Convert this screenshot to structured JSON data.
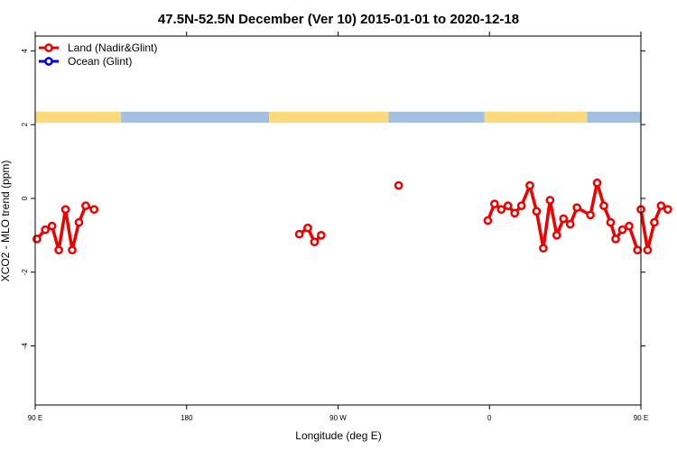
{
  "chart_data": {
    "type": "line",
    "title": "47.5N-52.5N December (Ver 10)   2015-01-01 to 2020-12-18",
    "xlabel": "Longitude (deg E)",
    "ylabel": "XCO2 - MLO trend (ppm)",
    "xlim": [
      90,
      450
    ],
    "ylim": [
      -5.6,
      4.4
    ],
    "x_ticks": [
      {
        "value": 90,
        "label": "90 E"
      },
      {
        "value": 180,
        "label": "180"
      },
      {
        "value": 270,
        "label": "90 W"
      },
      {
        "value": 360,
        "label": "0"
      },
      {
        "value": 450,
        "label": "90 E"
      }
    ],
    "x_ticks_top": [
      90,
      180,
      270,
      360,
      450
    ],
    "y_ticks": [
      {
        "value": 4,
        "label": "4"
      },
      {
        "value": 2,
        "label": "2"
      },
      {
        "value": 0,
        "label": "0"
      },
      {
        "value": -2,
        "label": "-2"
      },
      {
        "value": -4,
        "label": "-4"
      }
    ],
    "land_strip": {
      "y_range": [
        2.05,
        2.35
      ],
      "colors": {
        "land": "#fcd97a",
        "ocean": "#a3bfe0"
      },
      "segments": [
        {
          "from": 90,
          "to": 141,
          "kind": "land"
        },
        {
          "from": 141,
          "to": 229,
          "kind": "ocean"
        },
        {
          "from": 229,
          "to": 300,
          "kind": "land"
        },
        {
          "from": 300,
          "to": 357,
          "kind": "ocean"
        },
        {
          "from": 357,
          "to": 400,
          "kind": "land"
        },
        {
          "from": 400,
          "to": 418,
          "kind": "land"
        },
        {
          "from": 418,
          "to": 450,
          "kind": "ocean"
        }
      ]
    },
    "legend": {
      "position": "top-left",
      "entries": [
        {
          "label": "Land (Nadir&Glint)",
          "color": "#ee0000"
        },
        {
          "label": "Ocean (Glint)",
          "color": "#0000ee"
        }
      ]
    },
    "series": [
      {
        "name": "Land (Nadir&Glint)",
        "color": "#ee0000",
        "segments": [
          [
            [
              91,
              -1.1
            ],
            [
              96,
              -0.85
            ],
            [
              100,
              -0.75
            ],
            [
              104,
              -1.4
            ],
            [
              108,
              -0.3
            ],
            [
              112,
              -1.4
            ],
            [
              116,
              -0.65
            ],
            [
              120,
              -0.2
            ],
            [
              125,
              -0.3
            ]
          ],
          [
            [
              247,
              -0.97
            ],
            [
              252,
              -0.8
            ],
            [
              256,
              -1.18
            ],
            [
              260,
              -1.0
            ]
          ],
          [
            [
              306,
              0.35
            ]
          ],
          [
            [
              359,
              -0.6
            ],
            [
              363,
              -0.15
            ],
            [
              367,
              -0.3
            ],
            [
              371,
              -0.2
            ],
            [
              375,
              -0.4
            ],
            [
              379,
              -0.2
            ],
            [
              384,
              0.35
            ],
            [
              388,
              -0.35
            ],
            [
              392,
              -1.35
            ],
            [
              396,
              -0.05
            ],
            [
              400,
              -1.0
            ],
            [
              404,
              -0.55
            ],
            [
              408,
              -0.7
            ],
            [
              412,
              -0.25
            ],
            [
              420,
              -0.45
            ],
            [
              424,
              0.42
            ],
            [
              428,
              -0.2
            ],
            [
              432,
              -0.65
            ],
            [
              435,
              -1.1
            ],
            [
              439,
              -0.85
            ],
            [
              443,
              -0.75
            ],
            [
              448,
              -1.4
            ]
          ],
          [
            [
              450,
              -0.3
            ],
            [
              454,
              -1.4
            ],
            [
              458,
              -0.65
            ],
            [
              462,
              -0.2
            ],
            [
              466,
              -0.3
            ]
          ]
        ]
      },
      {
        "name": "Ocean (Glint)",
        "color": "#0000ee",
        "segments": []
      }
    ]
  }
}
